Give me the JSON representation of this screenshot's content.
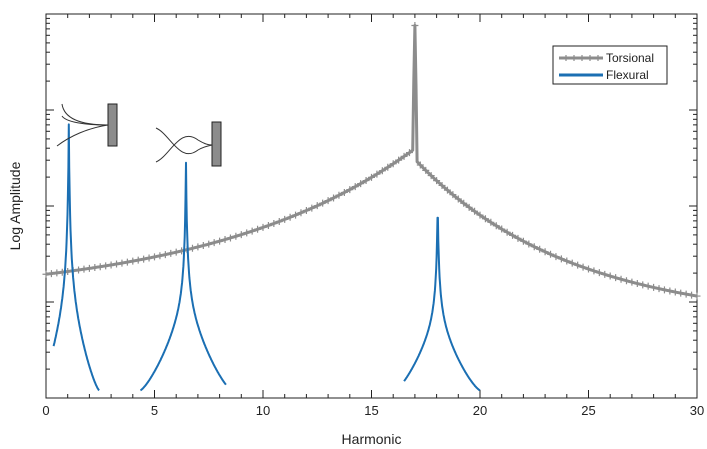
{
  "chart_data": {
    "type": "line",
    "xlabel": "Harmonic",
    "ylabel": "Log Amplitude",
    "xlim": [
      0,
      30
    ],
    "y_scale": "log",
    "ylim_decades": [
      0,
      4
    ],
    "y_tick_labels": "none",
    "x_ticks": [
      "0",
      "5",
      "10",
      "15",
      "20",
      "25",
      "30"
    ],
    "legend_position": "top-right",
    "grid": false,
    "series": [
      {
        "name": "Torsional",
        "color": "#8c8c8c",
        "marker": "plus",
        "resonance": {
          "center": 17.0,
          "base_log": 1.03,
          "peak_log": 3.88,
          "end_log": 0.78,
          "x_range": [
            0,
            30
          ],
          "peak_width": 0.1,
          "decay": 1.8
        }
      },
      {
        "name": "Flexural",
        "color": "#1b6fb3",
        "marker": "none",
        "resonances": [
          {
            "center": 1.05,
            "peak_log": 2.85,
            "x_range": [
              0.35,
              2.45
            ],
            "edge_log": 0.08
          },
          {
            "center": 6.45,
            "peak_log": 2.45,
            "x_range": [
              4.35,
              8.3
            ],
            "edge_log": 0.08
          },
          {
            "center": 18.05,
            "peak_log": 2.05,
            "x_range": [
              16.5,
              20.0
            ],
            "edge_log": 0.08
          }
        ]
      }
    ],
    "legend": {
      "items": [
        "Torsional",
        "Flexural"
      ]
    },
    "mode_icons": [
      "cantilever-mode-1-icon",
      "cantilever-mode-2-icon"
    ]
  }
}
